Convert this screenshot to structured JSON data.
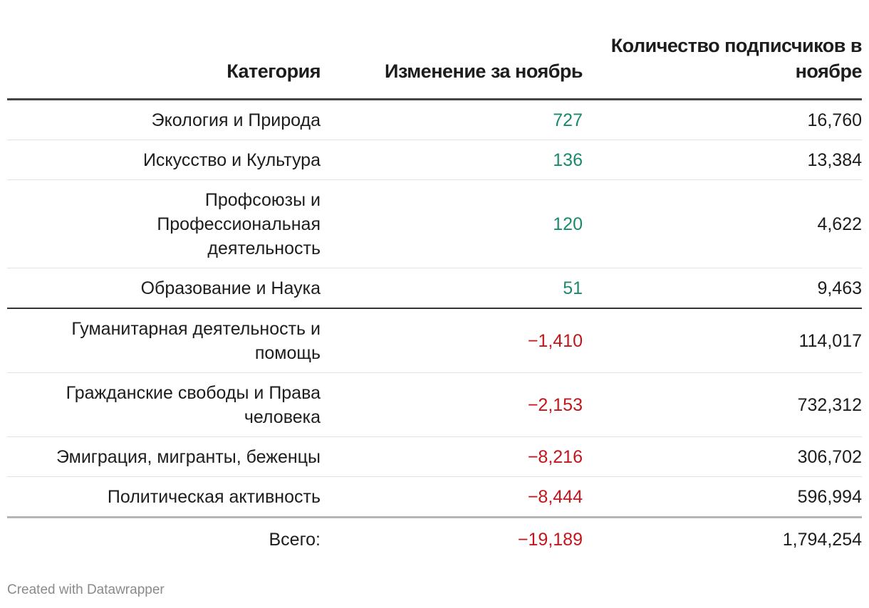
{
  "chart_data": {
    "type": "table",
    "columns": [
      "Категория",
      "Изменение за ноябрь",
      "Количество подписчиков в ноябре"
    ],
    "rows": [
      {
        "category": "Экология и Природа",
        "change": "727",
        "subscribers": "16,760"
      },
      {
        "category": "Искусство и Культура",
        "change": "136",
        "subscribers": "13,384"
      },
      {
        "category": "Профсоюзы и Профессиональная деятельность",
        "change": "120",
        "subscribers": "4,622"
      },
      {
        "category": "Образование и Наука",
        "change": "51",
        "subscribers": "9,463"
      },
      {
        "category": "Гуманитарная деятельность и помощь",
        "change": "−1,410",
        "subscribers": "114,017"
      },
      {
        "category": "Гражданские свободы и Права человека",
        "change": "−2,153",
        "subscribers": "732,312"
      },
      {
        "category": "Эмиграция, мигранты, беженцы",
        "change": "−8,216",
        "subscribers": "306,702"
      },
      {
        "category": "Политическая активность",
        "change": "−8,444",
        "subscribers": "596,994"
      }
    ],
    "total": {
      "label": "Всего:",
      "change": "−19,189",
      "subscribers": "1,794,254"
    }
  },
  "colors": {
    "positive": "#1a8a6e",
    "negative": "#c3161c",
    "text": "#1d1d1d",
    "footer": "#8a8a8a"
  },
  "footer": "Created with Datawrapper"
}
